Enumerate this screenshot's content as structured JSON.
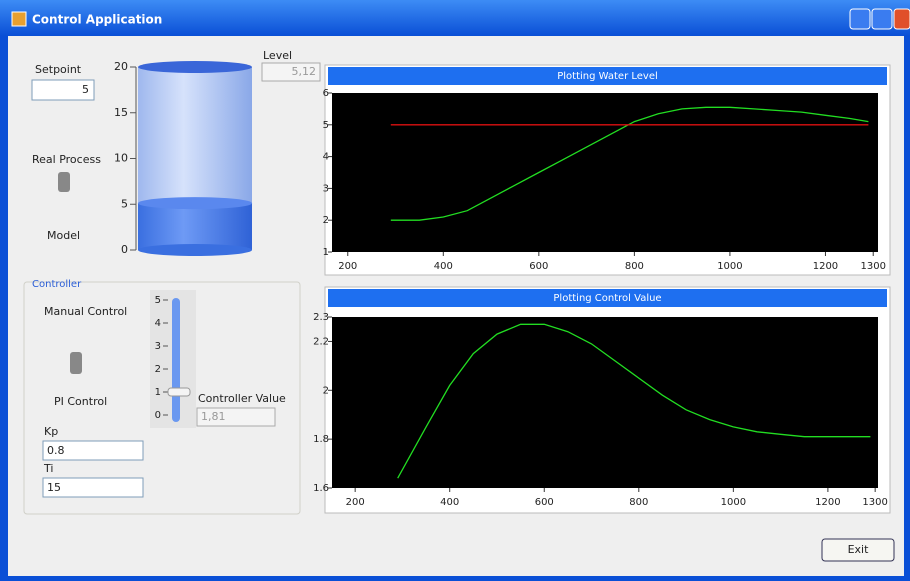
{
  "window": {
    "title": "Control Application"
  },
  "setpoint": {
    "label": "Setpoint",
    "value": "5"
  },
  "tank": {
    "lim": [
      0,
      20
    ],
    "ticks": [
      0,
      5,
      10,
      15,
      20
    ],
    "level_label": "Level",
    "level": {
      "value": 5.12,
      "label": "5,12"
    }
  },
  "process": {
    "options": [
      "Real Process",
      "Model"
    ]
  },
  "controller": {
    "title": "Controller",
    "modes": [
      "Manual Control",
      "PI Control"
    ],
    "kp_label": "Kp",
    "kp": "0.8",
    "ti_label": "Ti",
    "ti": "15",
    "slider_lim": [
      0,
      5
    ],
    "slider_ticks": [
      0,
      1,
      2,
      3,
      4,
      5
    ],
    "slider_value": 1,
    "value_label": "Controller Value",
    "value": {
      "value": 1.81,
      "label": "1,81"
    }
  },
  "chart_data": [
    {
      "type": "line",
      "title": "Plotting Water Level",
      "xlim": [
        167,
        1310
      ],
      "xticks": [
        200,
        400,
        600,
        800,
        1000,
        1200,
        1300
      ],
      "ylim": [
        1,
        6
      ],
      "yticks": [
        1,
        2,
        3,
        4,
        5,
        6
      ],
      "series": [
        {
          "color": "#22dd22",
          "x": [
            290,
            350,
            400,
            450,
            500,
            550,
            600,
            650,
            700,
            750,
            800,
            850,
            900,
            950,
            1000,
            1050,
            1100,
            1150,
            1200,
            1250,
            1290
          ],
          "values": [
            2.0,
            2.0,
            2.1,
            2.3,
            2.7,
            3.1,
            3.5,
            3.9,
            4.3,
            4.7,
            5.1,
            5.35,
            5.5,
            5.55,
            5.55,
            5.5,
            5.45,
            5.4,
            5.3,
            5.2,
            5.1
          ]
        },
        {
          "color": "#dd1111",
          "x": [
            290,
            1290
          ],
          "values": [
            5,
            5
          ]
        }
      ]
    },
    {
      "type": "line",
      "title": "Plotting Control Value",
      "xlim": [
        151,
        1306
      ],
      "xticks": [
        200,
        400,
        600,
        800,
        1000,
        1200,
        1300
      ],
      "ylim": [
        1.6,
        2.3
      ],
      "yticks": [
        1.6,
        1.8,
        2,
        2.2,
        2.3
      ],
      "series": [
        {
          "color": "#22dd22",
          "x": [
            290,
            350,
            400,
            450,
            500,
            550,
            600,
            650,
            700,
            750,
            800,
            850,
            900,
            950,
            1000,
            1050,
            1100,
            1150,
            1200,
            1250,
            1290
          ],
          "values": [
            1.64,
            1.85,
            2.02,
            2.15,
            2.23,
            2.27,
            2.27,
            2.24,
            2.19,
            2.12,
            2.05,
            1.98,
            1.92,
            1.88,
            1.85,
            1.83,
            1.82,
            1.81,
            1.81,
            1.81,
            1.81
          ]
        }
      ]
    }
  ],
  "exit": "Exit"
}
